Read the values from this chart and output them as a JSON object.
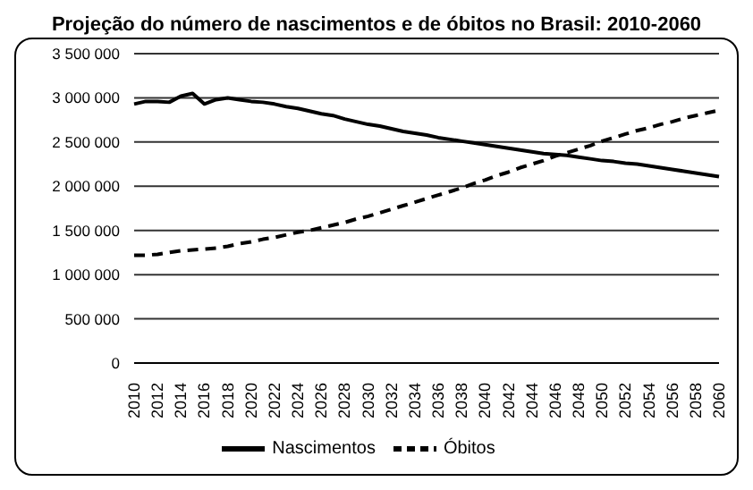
{
  "chart_data": {
    "type": "line",
    "title": "Projeção do número de nascimentos e de óbitos no Brasil: 2010-2060",
    "categories": [
      "2010",
      null,
      "2012",
      null,
      "2014",
      null,
      "2016",
      null,
      "2018",
      null,
      "2020",
      null,
      "2022",
      null,
      "2024",
      null,
      "2026",
      null,
      "2028",
      null,
      "2030",
      null,
      "2032",
      null,
      "2034",
      null,
      "2036",
      null,
      "2038",
      null,
      "2040",
      null,
      "2042",
      null,
      "2044",
      null,
      "2046",
      null,
      "2048",
      null,
      "2050",
      null,
      "2052",
      null,
      "2054",
      null,
      "2056",
      null,
      "2058",
      null,
      "2060"
    ],
    "series": [
      {
        "name": "Nascimentos",
        "color": "#000000",
        "line_style": "solid",
        "values": [
          2930000,
          2960000,
          2960000,
          2950000,
          3020000,
          3050000,
          2930000,
          2980000,
          3000000,
          2980000,
          2960000,
          2950000,
          2930000,
          2900000,
          2880000,
          2850000,
          2820000,
          2800000,
          2760000,
          2730000,
          2700000,
          2680000,
          2650000,
          2620000,
          2600000,
          2580000,
          2550000,
          2530000,
          2510000,
          2490000,
          2470000,
          2450000,
          2430000,
          2410000,
          2390000,
          2370000,
          2360000,
          2350000,
          2330000,
          2310000,
          2290000,
          2280000,
          2260000,
          2250000,
          2230000,
          2210000,
          2190000,
          2170000,
          2150000,
          2130000,
          2110000
        ]
      },
      {
        "name": "Óbitos",
        "color": "#000000",
        "line_style": "dashed",
        "values": [
          1220000,
          1220000,
          1230000,
          1250000,
          1270000,
          1280000,
          1290000,
          1300000,
          1320000,
          1350000,
          1370000,
          1400000,
          1420000,
          1450000,
          1480000,
          1500000,
          1530000,
          1560000,
          1590000,
          1630000,
          1660000,
          1700000,
          1740000,
          1780000,
          1820000,
          1860000,
          1900000,
          1940000,
          1980000,
          2030000,
          2070000,
          2120000,
          2160000,
          2210000,
          2250000,
          2290000,
          2340000,
          2380000,
          2420000,
          2460000,
          2510000,
          2550000,
          2590000,
          2630000,
          2660000,
          2700000,
          2730000,
          2770000,
          2800000,
          2830000,
          2860000
        ]
      }
    ],
    "ylim": [
      0,
      3500000
    ],
    "yticks": [
      0,
      {
        "value": 500000,
        "label": "500 000"
      },
      {
        "value": 1000000,
        "label": "1 000 000"
      },
      {
        "value": 1500000,
        "label": "1 500 000"
      },
      {
        "value": 2000000,
        "label": "2 000 000"
      },
      {
        "value": 2500000,
        "label": "2 500 000"
      },
      {
        "value": 3000000,
        "label": "3 000 000"
      },
      {
        "value": 3500000,
        "label": "3 500 000"
      }
    ],
    "grid": "y",
    "legend": "bottom",
    "marker": "none"
  }
}
